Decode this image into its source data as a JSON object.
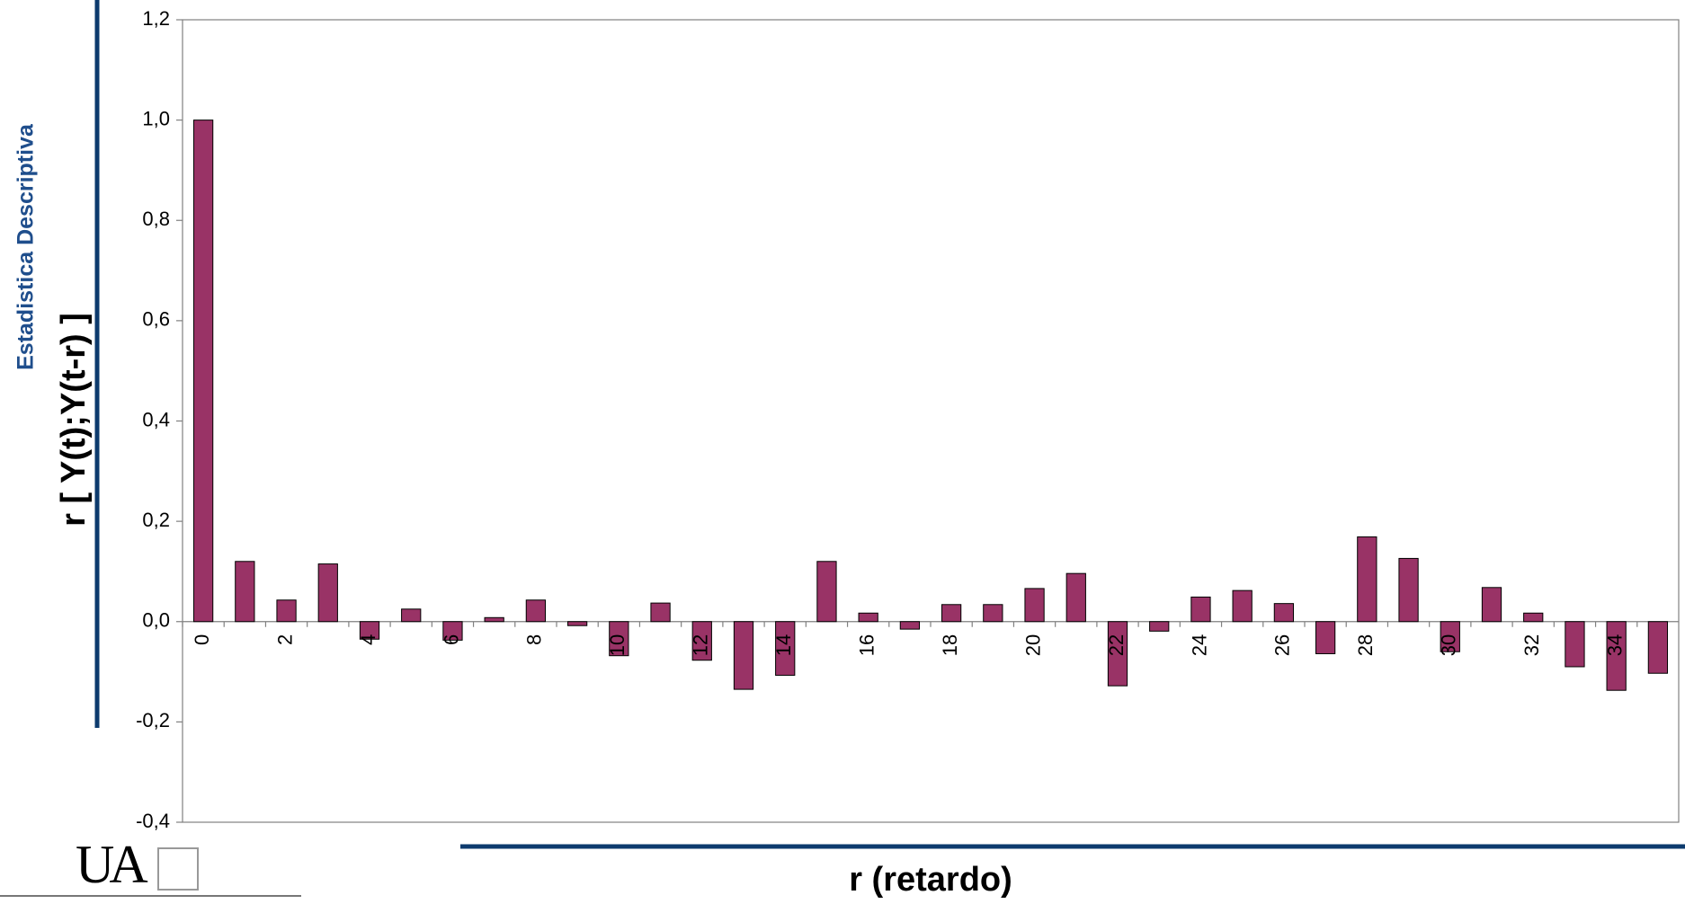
{
  "side_title": "Estadistica Descriptiva",
  "logo": "UA",
  "chart_data": {
    "type": "bar",
    "y_label": "r [ Y(t);Y(t-r) ]",
    "x_label": "r (retardo)",
    "categories": [
      "0",
      null,
      "2",
      null,
      "4",
      null,
      "6",
      null,
      "8",
      null,
      "10",
      null,
      "12",
      null,
      "14",
      null,
      "16",
      null,
      "18",
      null,
      "20",
      null,
      "22",
      null,
      "24",
      null,
      "26",
      null,
      "28",
      null,
      "30",
      null,
      "32",
      null,
      "34",
      null
    ],
    "values": [
      1.0,
      0.12,
      0.043,
      0.115,
      -0.035,
      0.025,
      -0.037,
      0.008,
      0.043,
      -0.008,
      -0.068,
      0.037,
      -0.077,
      -0.135,
      -0.107,
      0.12,
      0.017,
      -0.015,
      0.034,
      0.034,
      0.066,
      0.096,
      -0.128,
      -0.019,
      0.049,
      0.062,
      0.036,
      -0.064,
      0.169,
      0.126,
      -0.06,
      0.068,
      0.017,
      -0.09,
      -0.137,
      -0.103
    ],
    "color": "#993366",
    "ylim": [
      -0.4,
      1.2
    ],
    "yticks": [
      {
        "value": -0.4,
        "label": "-0,4"
      },
      {
        "value": -0.2,
        "label": "-0,2"
      },
      {
        "value": 0,
        "label": "0,0"
      },
      {
        "value": 0.2,
        "label": "0,2"
      },
      {
        "value": 0.4,
        "label": "0,4"
      },
      {
        "value": 0.6,
        "label": "0,6"
      },
      {
        "value": 0.8,
        "label": "0,8"
      },
      {
        "value": 1.0,
        "label": "1,0"
      },
      {
        "value": 1.2,
        "label": "1,2"
      }
    ],
    "grid": false
  }
}
